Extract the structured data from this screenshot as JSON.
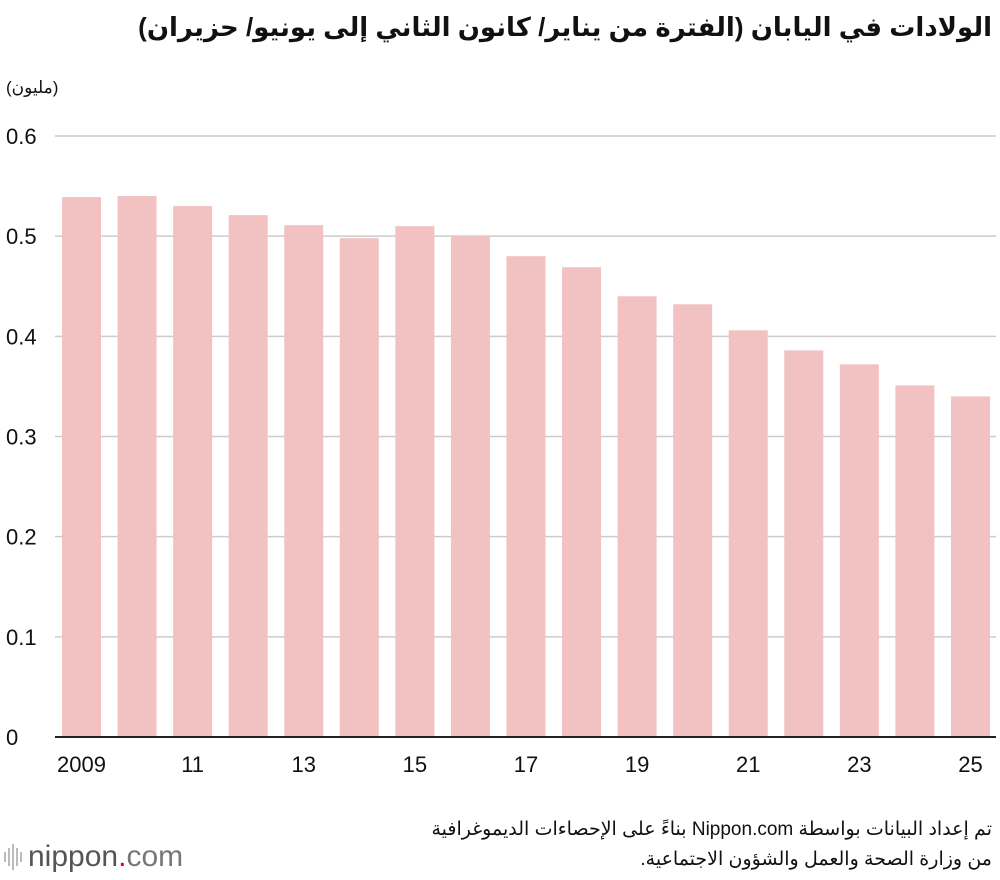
{
  "title": "الولادات في اليابان (الفترة من يناير/ كانون الثاني إلى يونيو/ حزيران)",
  "unit": "(مليون)",
  "source_line1": "تم إعداد البيانات بواسطة Nippon.com بناءً على الإحصاءات الديموغرافية",
  "source_line2": "من وزارة الصحة والعمل والشؤون الاجتماعية.",
  "logo": {
    "name": "nippon",
    "dot": ".",
    "suffix": "com"
  },
  "chart_data": {
    "type": "bar",
    "title": "الولادات في اليابان (الفترة من يناير/ كانون الثاني إلى يونيو/ حزيران)",
    "ylabel": "(مليون)",
    "xlabel": "",
    "categories": [
      "2009",
      "2010",
      "2011",
      "2012",
      "2013",
      "2014",
      "2015",
      "2016",
      "2017",
      "2018",
      "2019",
      "2020",
      "2021",
      "2022",
      "2023",
      "2024",
      "2025"
    ],
    "x_tick_labels": [
      "2009",
      "",
      "11",
      "",
      "13",
      "",
      "15",
      "",
      "17",
      "",
      "19",
      "",
      "21",
      "",
      "23",
      "",
      "25"
    ],
    "values": [
      0.539,
      0.54,
      0.53,
      0.521,
      0.511,
      0.498,
      0.51,
      0.5,
      0.48,
      0.469,
      0.44,
      0.432,
      0.406,
      0.386,
      0.372,
      0.351,
      0.34
    ],
    "ylim": [
      0,
      0.6
    ],
    "y_ticks": [
      "0",
      "0.1",
      "0.2",
      "0.3",
      "0.4",
      "0.5",
      "0.6"
    ],
    "grid": true,
    "bar_color": "#f2c1c1",
    "grid_color": "#cccccc"
  }
}
